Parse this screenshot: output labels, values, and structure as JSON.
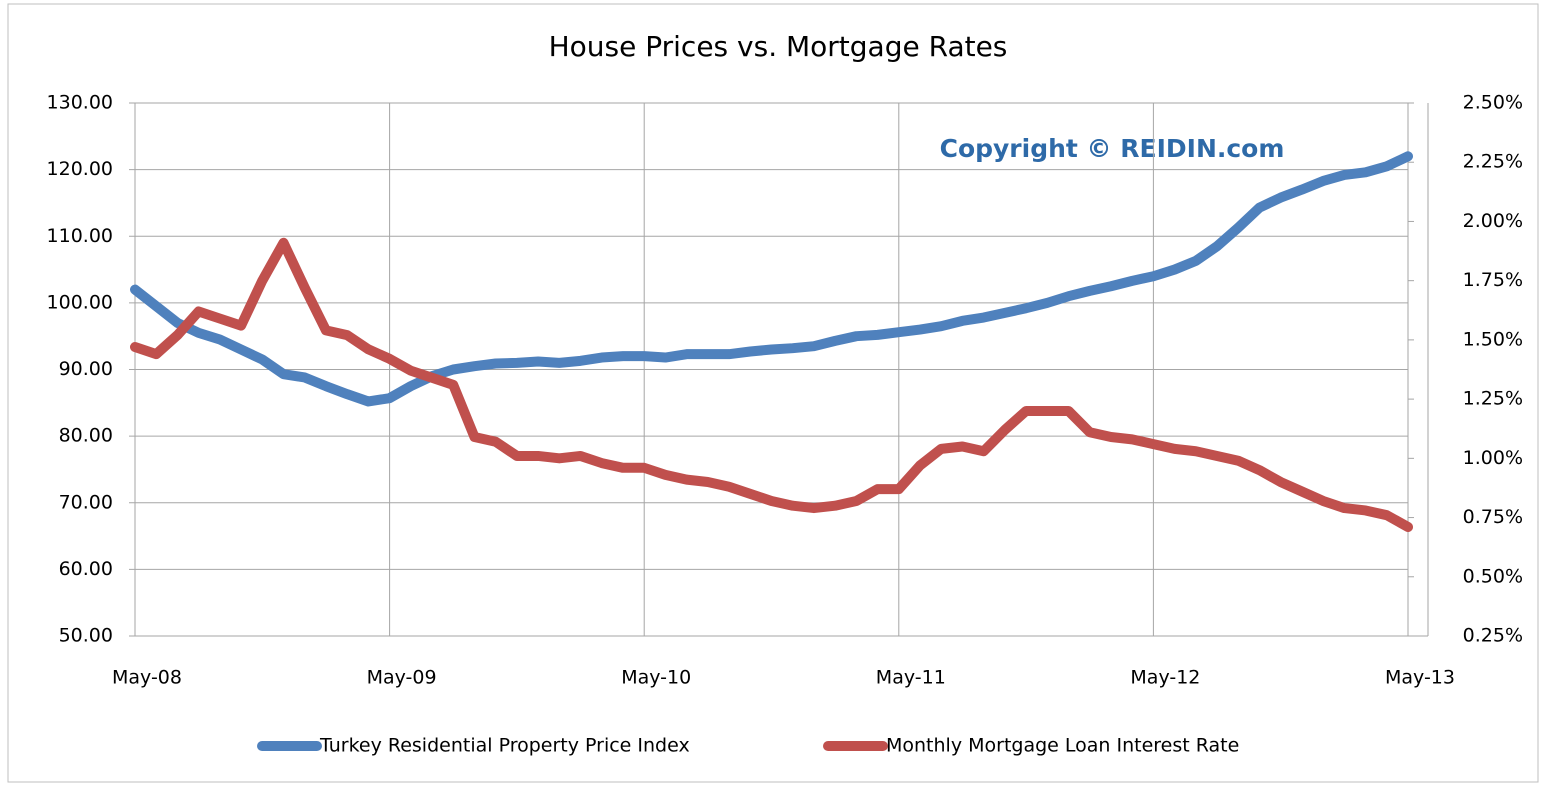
{
  "chart_data": {
    "type": "line",
    "title": "House Prices vs. Mortgage Rates",
    "annotation": "Copyright © REIDIN.com",
    "categories": [
      "May-08",
      null,
      null,
      null,
      null,
      null,
      null,
      null,
      null,
      null,
      null,
      null,
      "May-09",
      null,
      null,
      null,
      null,
      null,
      null,
      null,
      null,
      null,
      null,
      null,
      "May-10",
      null,
      null,
      null,
      null,
      null,
      null,
      null,
      null,
      null,
      null,
      null,
      "May-11",
      null,
      null,
      null,
      null,
      null,
      null,
      null,
      null,
      null,
      null,
      null,
      "May-12",
      null,
      null,
      null,
      null,
      null,
      null,
      null,
      null,
      null,
      null,
      null,
      "May-13"
    ],
    "series": [
      {
        "name": "Turkey Residential Property Price Index",
        "color": "#4f81bd",
        "axis": "y",
        "values": [
          102.0,
          99.5,
          97.0,
          95.5,
          94.5,
          93.0,
          91.5,
          89.3,
          88.8,
          87.5,
          86.3,
          85.2,
          85.7,
          87.5,
          89.0,
          90.0,
          90.5,
          90.9,
          91.0,
          91.2,
          91.0,
          91.3,
          91.8,
          92.0,
          92.0,
          91.8,
          92.3,
          92.3,
          92.3,
          92.7,
          93.0,
          93.2,
          93.5,
          94.3,
          95.0,
          95.2,
          95.6,
          96.0,
          96.5,
          97.3,
          97.8,
          98.5,
          99.2,
          100.0,
          101.0,
          101.8,
          102.5,
          103.3,
          104.0,
          105.0,
          106.3,
          108.5,
          111.3,
          114.3,
          115.8,
          117.0,
          118.3,
          119.2,
          119.6,
          120.5,
          122.0
        ]
      },
      {
        "name": "Monthly Mortgage Loan Interest Rate",
        "color": "#c0504d",
        "axis": "y2",
        "values": [
          1.47,
          1.44,
          1.52,
          1.62,
          1.59,
          1.56,
          1.75,
          1.91,
          1.72,
          1.54,
          1.52,
          1.46,
          1.42,
          1.37,
          1.34,
          1.31,
          1.09,
          1.07,
          1.01,
          1.01,
          1.0,
          1.01,
          0.98,
          0.96,
          0.96,
          0.93,
          0.91,
          0.9,
          0.88,
          0.85,
          0.82,
          0.8,
          0.79,
          0.8,
          0.82,
          0.87,
          0.87,
          0.97,
          1.04,
          1.05,
          1.03,
          1.12,
          1.2,
          1.2,
          1.2,
          1.11,
          1.09,
          1.08,
          1.06,
          1.04,
          1.03,
          1.01,
          0.99,
          0.95,
          0.9,
          0.86,
          0.82,
          0.79,
          0.78,
          0.76,
          0.71
        ]
      }
    ],
    "ylim": [
      50,
      130
    ],
    "yticks": [
      {
        "value": 50,
        "label": "50.00"
      },
      {
        "value": 60,
        "label": "60.00"
      },
      {
        "value": 70,
        "label": "70.00"
      },
      {
        "value": 80,
        "label": "80.00"
      },
      {
        "value": 90,
        "label": "90.00"
      },
      {
        "value": 100,
        "label": "100.00"
      },
      {
        "value": 110,
        "label": "110.00"
      },
      {
        "value": 120,
        "label": "120.00"
      },
      {
        "value": 130,
        "label": "130.00"
      }
    ],
    "y2lim": [
      0.25,
      2.5
    ],
    "y2ticks": [
      {
        "value": 0.25,
        "label": "0.25%"
      },
      {
        "value": 0.5,
        "label": "0.50%"
      },
      {
        "value": 0.75,
        "label": "0.75%"
      },
      {
        "value": 1.0,
        "label": "1.00%"
      },
      {
        "value": 1.25,
        "label": "1.25%"
      },
      {
        "value": 1.5,
        "label": "1.50%"
      },
      {
        "value": 1.75,
        "label": "1.75%"
      },
      {
        "value": 2.0,
        "label": "2.00%"
      },
      {
        "value": 2.25,
        "label": "2.25%"
      },
      {
        "value": 2.5,
        "label": "2.50%"
      }
    ],
    "grid": true,
    "legend": "bottom"
  }
}
